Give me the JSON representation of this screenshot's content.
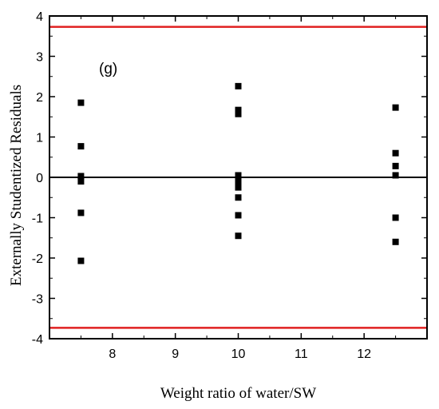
{
  "chart_data": {
    "type": "scatter",
    "panel_label": "(g)",
    "xlabel": "Weight ratio of water/SW",
    "ylabel": "Externally Studentized Residuals",
    "xlim": [
      7.0,
      13.0
    ],
    "ylim": [
      -4,
      4
    ],
    "x_ticks": [
      8,
      9,
      10,
      11,
      12
    ],
    "y_ticks": [
      -4,
      -3,
      -2,
      -1,
      0,
      1,
      2,
      3,
      4
    ],
    "reference_lines": [
      {
        "y": 3.73,
        "color": "#e02020"
      },
      {
        "y": -3.73,
        "color": "#e02020"
      },
      {
        "y": 0,
        "color": "#000000"
      }
    ],
    "marker_color": "#000000",
    "points": [
      {
        "x": 7.5,
        "y": 1.85
      },
      {
        "x": 7.5,
        "y": 0.77
      },
      {
        "x": 7.5,
        "y": 0.03
      },
      {
        "x": 7.5,
        "y": -0.1
      },
      {
        "x": 7.5,
        "y": -0.88
      },
      {
        "x": 7.5,
        "y": -2.07
      },
      {
        "x": 10,
        "y": 2.26
      },
      {
        "x": 10,
        "y": 1.67
      },
      {
        "x": 10,
        "y": 1.57
      },
      {
        "x": 10,
        "y": 0.05
      },
      {
        "x": 10,
        "y": -0.05
      },
      {
        "x": 10,
        "y": -0.15
      },
      {
        "x": 10,
        "y": -0.25
      },
      {
        "x": 10,
        "y": -0.5
      },
      {
        "x": 10,
        "y": -0.94
      },
      {
        "x": 10,
        "y": -1.45
      },
      {
        "x": 12.5,
        "y": 1.73
      },
      {
        "x": 12.5,
        "y": 0.6
      },
      {
        "x": 12.5,
        "y": 0.28
      },
      {
        "x": 12.5,
        "y": 0.05
      },
      {
        "x": 12.5,
        "y": -1.0
      },
      {
        "x": 12.5,
        "y": -1.6
      }
    ]
  }
}
